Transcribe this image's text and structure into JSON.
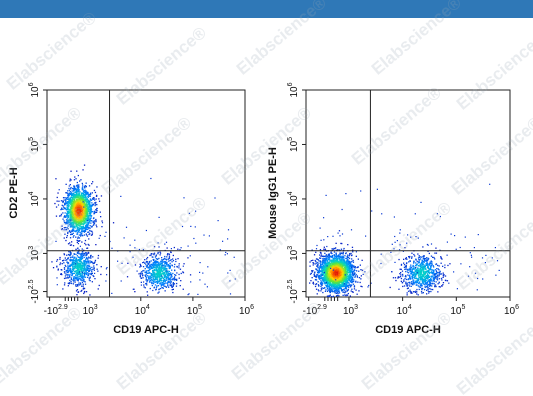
{
  "brand": {
    "bar_color": "#2f78b7",
    "watermark_text": "Elabscience",
    "watermark_symbol": "®"
  },
  "chart_data": [
    {
      "type": "scatter",
      "subtype": "flow-cytometry-density-dot-plot",
      "xlabel": "CD19 APC-H",
      "ylabel": "CD2 PE-H",
      "x_scale": "biexponential",
      "y_scale": "biexponential",
      "x_ticks": [
        {
          "base": "-10",
          "exp": "2.9"
        },
        {
          "base": "10",
          "exp": "3"
        },
        {
          "base": "10",
          "exp": "4"
        },
        {
          "base": "10",
          "exp": "5"
        },
        {
          "base": "10",
          "exp": "6"
        }
      ],
      "y_ticks": [
        {
          "base": "-10",
          "exp": "2.5"
        },
        {
          "base": "10",
          "exp": "3"
        },
        {
          "base": "10",
          "exp": "4"
        },
        {
          "base": "10",
          "exp": "5"
        },
        {
          "base": "10",
          "exp": "6"
        }
      ],
      "gate": {
        "x": 3.4,
        "y": 3.05
      },
      "populations": [
        {
          "cx": 2.8,
          "cy": 3.8,
          "sx": 0.14,
          "sy": 0.22,
          "n": 1800,
          "peak": 1.0
        },
        {
          "cx": 2.8,
          "cy": 2.75,
          "sx": 0.15,
          "sy": 0.17,
          "n": 620,
          "peak": 0.45
        },
        {
          "cx": 4.35,
          "cy": 2.65,
          "sx": 0.18,
          "sy": 0.17,
          "n": 650,
          "peak": 0.45
        }
      ],
      "scatter_noise": 120
    },
    {
      "type": "scatter",
      "subtype": "flow-cytometry-density-dot-plot",
      "xlabel": "CD19 APC-H",
      "ylabel": "Mouse IgG1 PE-H",
      "x_scale": "biexponential",
      "y_scale": "biexponential",
      "x_ticks": [
        {
          "base": "-10",
          "exp": "2.9"
        },
        {
          "base": "10",
          "exp": "3"
        },
        {
          "base": "10",
          "exp": "4"
        },
        {
          "base": "10",
          "exp": "5"
        },
        {
          "base": "10",
          "exp": "6"
        }
      ],
      "y_ticks": [
        {
          "base": "-10",
          "exp": "2.5"
        },
        {
          "base": "10",
          "exp": "3"
        },
        {
          "base": "10",
          "exp": "4"
        },
        {
          "base": "10",
          "exp": "5"
        },
        {
          "base": "10",
          "exp": "6"
        }
      ],
      "gate": {
        "x": 3.4,
        "y": 3.05
      },
      "populations": [
        {
          "cx": 2.75,
          "cy": 2.65,
          "sx": 0.17,
          "sy": 0.17,
          "n": 2300,
          "peak": 1.0
        },
        {
          "cx": 4.35,
          "cy": 2.65,
          "sx": 0.18,
          "sy": 0.17,
          "n": 700,
          "peak": 0.45
        }
      ],
      "scatter_noise": 120
    }
  ]
}
